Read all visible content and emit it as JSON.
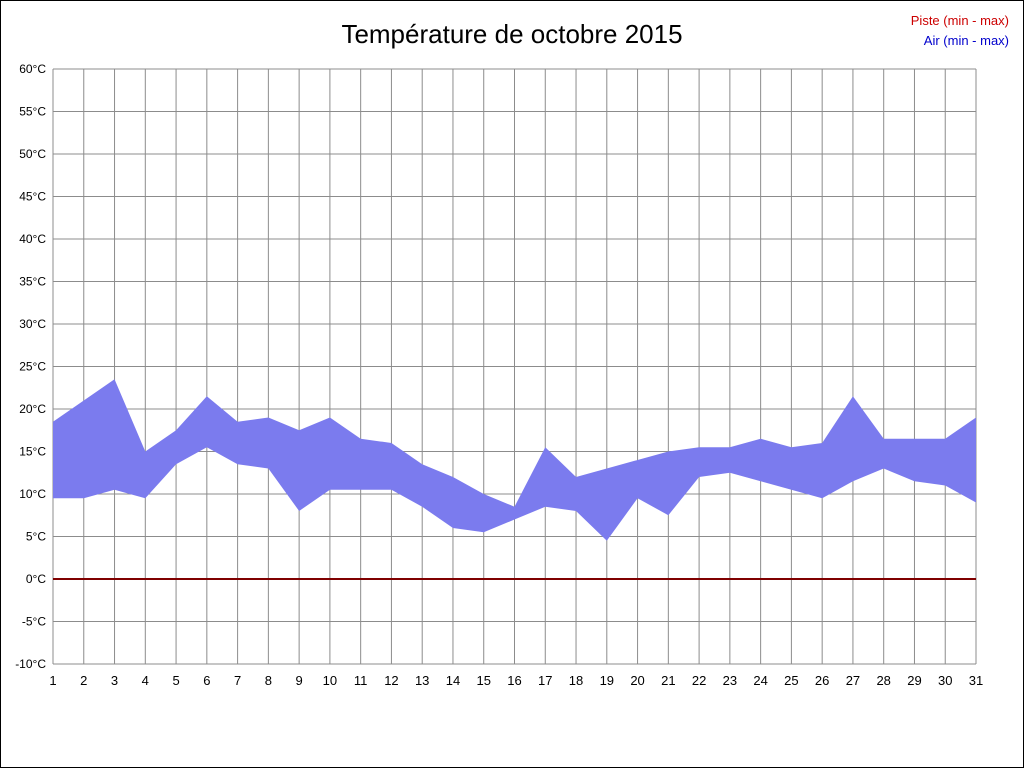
{
  "page": {
    "title": "Température de octobre 2015"
  },
  "legend": {
    "items": [
      {
        "label": "Piste (min - max)",
        "color": "#cc0000"
      },
      {
        "label": "Air (min - max)",
        "color": "#0000cc"
      }
    ]
  },
  "chart_data": {
    "type": "area",
    "title": "Température de octobre 2015",
    "xlabel": "",
    "ylabel": "",
    "x": [
      1,
      2,
      3,
      4,
      5,
      6,
      7,
      8,
      9,
      10,
      11,
      12,
      13,
      14,
      15,
      16,
      17,
      18,
      19,
      20,
      21,
      22,
      23,
      24,
      25,
      26,
      27,
      28,
      29,
      30,
      31
    ],
    "series": [
      {
        "name": "Air min",
        "values": [
          9.5,
          9.5,
          10.5,
          9.5,
          13.5,
          15.5,
          13.5,
          13,
          8,
          10.5,
          10.5,
          10.5,
          8.5,
          6,
          5.5,
          7,
          8.5,
          8,
          4.5,
          9.5,
          7.5,
          12,
          12.5,
          11.5,
          10.5,
          9.5,
          11.5,
          13,
          11.5,
          11,
          9
        ]
      },
      {
        "name": "Air max",
        "values": [
          18.5,
          21,
          23.5,
          15,
          17.5,
          21.5,
          18.5,
          19,
          17.5,
          19,
          16.5,
          16,
          13.5,
          12,
          10,
          8.5,
          15.5,
          12,
          13,
          14,
          15,
          15.5,
          15.5,
          16.5,
          15.5,
          16,
          21.5,
          16.5,
          16.5,
          16.5,
          19
        ]
      },
      {
        "name": "Piste",
        "values": [
          0,
          0,
          0,
          0,
          0,
          0,
          0,
          0,
          0,
          0,
          0,
          0,
          0,
          0,
          0,
          0,
          0,
          0,
          0,
          0,
          0,
          0,
          0,
          0,
          0,
          0,
          0,
          0,
          0,
          0,
          0
        ]
      }
    ],
    "ylim": [
      -10,
      60
    ],
    "ytick_step": 5,
    "y_suffix": "°C",
    "grid": true,
    "legend_position": "top-right",
    "band_color": "#7b7bee",
    "piste_line_color": "#7f0000",
    "grid_color": "#8c8c8c",
    "axis_text_color": "#000000"
  }
}
